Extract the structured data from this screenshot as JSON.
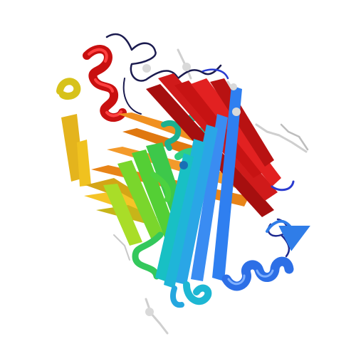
{
  "image": {
    "subject": "protein-ribbon-structure",
    "background": "#ffffff"
  },
  "palette": {
    "blue": "#1f3fe0",
    "azure": "#2f7de8",
    "cyan": "#23b4d6",
    "teal": "#1fd2a8",
    "green": "#3ad24a",
    "lime": "#8fe02a",
    "yellow": "#e0d018",
    "orange": "#f08a1c",
    "red": "#d81818",
    "dark_red": "#8f0f0f",
    "loop": "#1a1a4a",
    "ligand": "#d8d8d8"
  }
}
